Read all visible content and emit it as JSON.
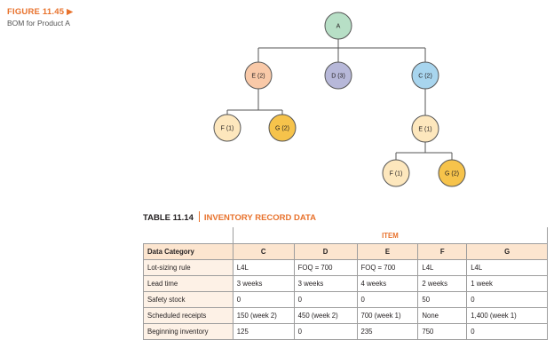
{
  "figure": {
    "number": "FIGURE 11.45 ▶",
    "caption": "BOM for Product A"
  },
  "bom_nodes": {
    "a": "A",
    "e2": "E (2)",
    "d3": "D (3)",
    "c2": "C (2)",
    "f1": "F (1)",
    "g2": "G (2)",
    "e1": "E (1)",
    "f1b": "F (1)",
    "g2b": "G (2)"
  },
  "colors": {
    "a": "#b7dfc6",
    "e": "#f9c9a8",
    "d": "#b7b8d9",
    "c": "#a8d5ee",
    "f": "#fde7bd",
    "g": "#f6c34b",
    "accent": "#e8722c",
    "header_fill": "#fce5cf",
    "row_label_fill": "#fdf1e6"
  },
  "table": {
    "number": "TABLE 11.14",
    "title": "INVENTORY RECORD DATA",
    "item_header": "ITEM",
    "category_header": "Data Category",
    "columns": [
      "C",
      "D",
      "E",
      "F",
      "G"
    ],
    "rows": [
      {
        "label": "Lot-sizing rule",
        "cells": [
          "L4L",
          "FOQ = 700",
          "FOQ = 700",
          "L4L",
          "L4L"
        ]
      },
      {
        "label": "Lead time",
        "cells": [
          "3 weeks",
          "3 weeks",
          "4 weeks",
          "2 weeks",
          "1 week"
        ]
      },
      {
        "label": "Safety stock",
        "cells": [
          "0",
          "0",
          "0",
          "50",
          "0"
        ]
      },
      {
        "label": "Scheduled receipts",
        "cells": [
          "150 (week 2)",
          "450 (week 2)",
          "700 (week 1)",
          "None",
          "1,400 (week 1)"
        ]
      },
      {
        "label": "Beginning inventory",
        "cells": [
          "125",
          "0",
          "235",
          "750",
          "0"
        ]
      }
    ]
  }
}
